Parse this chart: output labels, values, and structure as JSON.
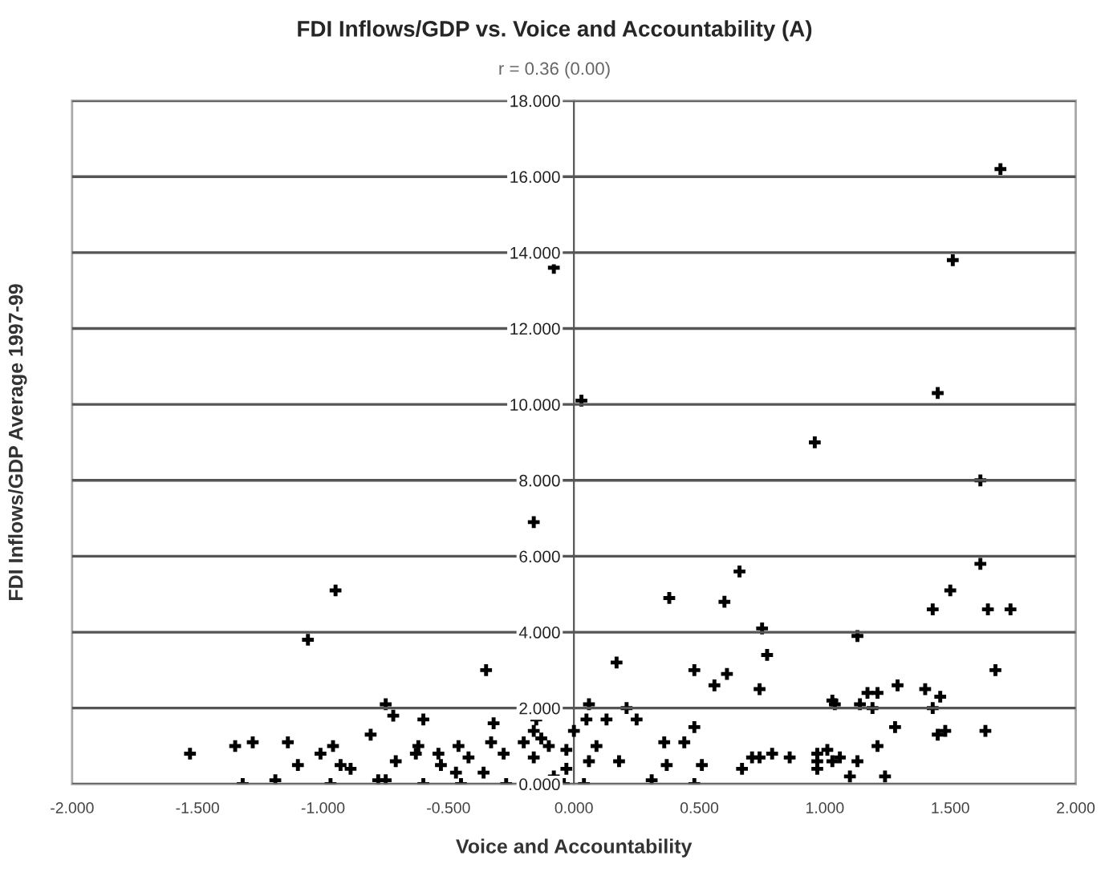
{
  "chart_data": {
    "type": "scatter",
    "title": "FDI Inflows/GDP vs. Voice and Accountability (A)",
    "subtitle": "r = 0.36 (0.00)",
    "xlabel": "Voice and Accountability",
    "ylabel": "FDI Inflows/GDP Average 1997-99",
    "xlim": [
      -2,
      2
    ],
    "ylim": [
      0,
      18
    ],
    "xticks": [
      {
        "value": -2,
        "label": "-2.000"
      },
      {
        "value": -1.5,
        "label": "-1.500"
      },
      {
        "value": -1,
        "label": "-1.000"
      },
      {
        "value": -0.5,
        "label": "-0.500"
      },
      {
        "value": 0,
        "label": "0.000"
      },
      {
        "value": 0.5,
        "label": "0.500"
      },
      {
        "value": 1,
        "label": "1.000"
      },
      {
        "value": 1.5,
        "label": "1.500"
      },
      {
        "value": 2,
        "label": "2.000"
      }
    ],
    "yticks": [
      {
        "value": 0,
        "label": "0.000"
      },
      {
        "value": 2,
        "label": "2.000"
      },
      {
        "value": 4,
        "label": "4.000"
      },
      {
        "value": 6,
        "label": "6.000"
      },
      {
        "value": 8,
        "label": "8.000"
      },
      {
        "value": 10,
        "label": "10.000"
      },
      {
        "value": 12,
        "label": "12.000"
      },
      {
        "value": 14,
        "label": "14.000"
      },
      {
        "value": 16,
        "label": "16.000"
      },
      {
        "value": 18,
        "label": "18.000"
      }
    ],
    "grid": "y",
    "marker": "cross",
    "series": [
      {
        "color": "#000000",
        "x": [
          1.7,
          1.51,
          -0.08,
          1.45,
          0.03,
          0.96,
          1.62,
          -0.16,
          1.62,
          0.66,
          -0.95,
          1.5,
          0.38,
          0.6,
          1.43,
          1.65,
          1.74,
          0.75,
          -1.06,
          1.13,
          0.77,
          -0.35,
          1.68,
          0.17,
          0.48,
          0.61,
          0.56,
          0.74,
          1.29,
          1.4,
          1.46,
          1.17,
          1.21,
          1.03,
          1.14,
          1.04,
          1.19,
          1.43,
          -0.15,
          0.06,
          0.21,
          -0.75,
          -0.72,
          0.05,
          0.13,
          0.25,
          0.0,
          -0.32,
          -0.6,
          0.48,
          1.28,
          1.45,
          1.48,
          1.64,
          -0.16,
          -0.13,
          -0.81,
          -1.28,
          -1.35,
          -1.14,
          -0.96,
          -0.33,
          -0.2,
          0.36,
          0.44,
          1.21,
          -0.46,
          -0.62,
          -0.1,
          -0.03,
          0.09,
          -0.63,
          -0.54,
          -1.01,
          -1.53,
          -0.16,
          -0.28,
          0.18,
          0.06,
          0.97,
          1.01,
          1.06,
          0.74,
          0.71,
          0.79,
          0.86,
          0.97,
          1.03,
          1.13,
          0.37,
          0.51,
          -1.1,
          -0.93,
          -0.71,
          -0.53,
          -0.42,
          -0.03,
          0.97,
          -0.89,
          -0.36,
          -0.47,
          0.67,
          1.24,
          1.1,
          -1.32,
          -1.19,
          -0.97,
          -0.78,
          -0.6,
          -0.45,
          -0.27,
          -0.04,
          0.04,
          0.31,
          0.48,
          -0.75,
          -0.08
        ],
        "values": [
          16.2,
          13.8,
          13.6,
          10.3,
          10.1,
          9.0,
          8.0,
          6.9,
          5.8,
          5.6,
          5.1,
          5.1,
          4.9,
          4.8,
          4.6,
          4.6,
          4.6,
          4.1,
          3.8,
          3.9,
          3.4,
          3.0,
          3.0,
          3.2,
          3.0,
          2.9,
          2.6,
          2.5,
          2.6,
          2.5,
          2.3,
          2.4,
          2.4,
          2.2,
          2.1,
          2.1,
          2.0,
          2.0,
          1.7,
          2.1,
          2.0,
          2.1,
          1.8,
          1.7,
          1.7,
          1.7,
          1.4,
          1.6,
          1.7,
          1.5,
          1.5,
          1.3,
          1.4,
          1.4,
          1.4,
          1.2,
          1.3,
          1.1,
          1.0,
          1.1,
          1.0,
          1.1,
          1.1,
          1.1,
          1.1,
          1.0,
          1.0,
          1.0,
          1.0,
          0.9,
          1.0,
          0.8,
          0.8,
          0.8,
          0.8,
          0.7,
          0.8,
          0.6,
          0.6,
          0.8,
          0.9,
          0.7,
          0.7,
          0.7,
          0.8,
          0.7,
          0.6,
          0.6,
          0.6,
          0.5,
          0.5,
          0.5,
          0.5,
          0.6,
          0.5,
          0.7,
          0.4,
          0.4,
          0.4,
          0.3,
          0.3,
          0.4,
          0.2,
          0.2,
          0.0,
          0.1,
          0.0,
          0.1,
          0.0,
          0.0,
          0.0,
          0.0,
          0.0,
          0.1,
          0.0,
          0.1,
          0.2
        ]
      }
    ]
  }
}
